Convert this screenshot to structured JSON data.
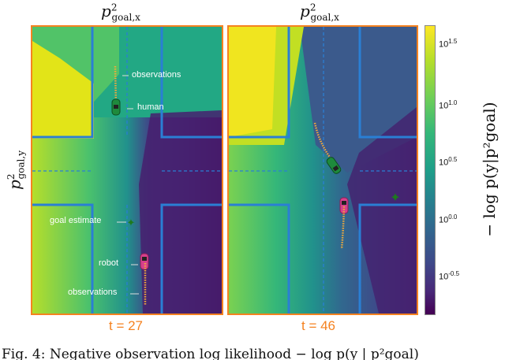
{
  "panels": [
    {
      "xlabel_main": "p",
      "xlabel_sup": "2",
      "xlabel_sub": "goal,x",
      "time_label": "t = 27",
      "annotations": {
        "observations_top": "observations",
        "human": "human",
        "goal_estimate": "goal estimate",
        "robot": "robot",
        "observations_bottom": "observations"
      }
    },
    {
      "xlabel_main": "p",
      "xlabel_sup": "2",
      "xlabel_sub": "goal,x",
      "time_label": "t = 46"
    }
  ],
  "ylabel": {
    "main": "p",
    "sup": "2",
    "sub": "goal,y"
  },
  "colorbar": {
    "label": "− log p(y|p²goal)",
    "scale": "log",
    "colormap": "viridis",
    "ticks": [
      {
        "base": "10",
        "exp": "1.5"
      },
      {
        "base": "10",
        "exp": "1.0"
      },
      {
        "base": "10",
        "exp": "0.5"
      },
      {
        "base": "10",
        "exp": "0.0"
      },
      {
        "base": "10",
        "exp": "-0.5"
      }
    ]
  },
  "colors": {
    "frame": "#f58220",
    "road": "#2a7fd4",
    "human_car": "#1e8a3c",
    "robot_car": "#d63f8c",
    "observations": "#f2a93b",
    "goal_marker": "#1e7a1e"
  },
  "caption": "Fig. 4: Negative observation log likelihood − log p(y | p²goal)"
}
